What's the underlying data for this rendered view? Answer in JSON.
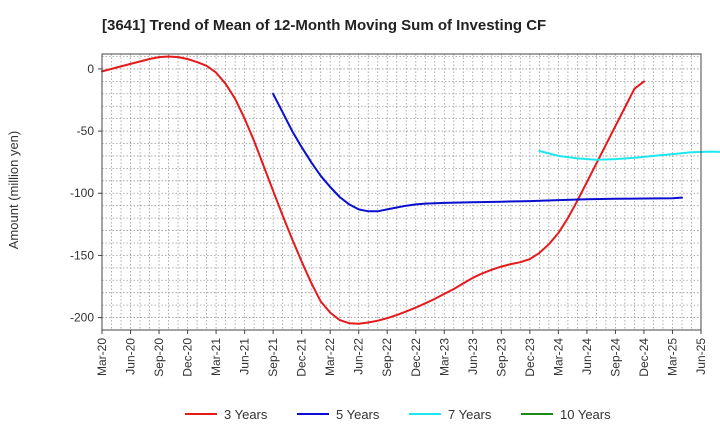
{
  "chart_data": {
    "type": "line",
    "title": "[3641]  Trend of Mean of 12-Month Moving Sum of Investing CF",
    "xlabel": "",
    "ylabel": "Amount (million yen)",
    "ylim": [
      -210,
      12
    ],
    "yticks": [
      0,
      -50,
      -100,
      -150,
      -200
    ],
    "xticks": [
      "Mar-20",
      "Jun-20",
      "Sep-20",
      "Dec-20",
      "Mar-21",
      "Jun-21",
      "Sep-21",
      "Dec-21",
      "Mar-22",
      "Jun-22",
      "Sep-22",
      "Dec-22",
      "Mar-23",
      "Jun-23",
      "Sep-23",
      "Dec-23",
      "Mar-24",
      "Jun-24",
      "Sep-24",
      "Dec-24",
      "Mar-25",
      "Jun-25"
    ],
    "grid": true,
    "legend_position": "bottom",
    "series": [
      {
        "name": "3 Years",
        "color": "#e41a1c",
        "points": [
          [
            "Mar-20",
            -2
          ],
          [
            "Apr-20",
            0
          ],
          [
            "May-20",
            2
          ],
          [
            "Jun-20",
            4
          ],
          [
            "Jul-20",
            6
          ],
          [
            "Aug-20",
            8
          ],
          [
            "Sep-20",
            9.5
          ],
          [
            "Oct-20",
            10
          ],
          [
            "Nov-20",
            9.5
          ],
          [
            "Dec-20",
            8
          ],
          [
            "Jan-21",
            5.5
          ],
          [
            "Feb-21",
            2.5
          ],
          [
            "Mar-21",
            -3
          ],
          [
            "Apr-21",
            -12
          ],
          [
            "May-21",
            -24
          ],
          [
            "Jun-21",
            -40
          ],
          [
            "Jul-21",
            -58
          ],
          [
            "Aug-21",
            -78
          ],
          [
            "Sep-21",
            -98
          ],
          [
            "Oct-21",
            -118
          ],
          [
            "Nov-21",
            -137
          ],
          [
            "Dec-21",
            -155
          ],
          [
            "Jan-22",
            -172
          ],
          [
            "Feb-22",
            -187
          ],
          [
            "Mar-22",
            -196
          ],
          [
            "Apr-22",
            -202
          ],
          [
            "May-22",
            -204.5
          ],
          [
            "Jun-22",
            -205
          ],
          [
            "Jul-22",
            -204
          ],
          [
            "Aug-22",
            -202.5
          ],
          [
            "Sep-22",
            -200.5
          ],
          [
            "Oct-22",
            -198
          ],
          [
            "Nov-22",
            -195
          ],
          [
            "Dec-22",
            -192
          ],
          [
            "Jan-23",
            -188.5
          ],
          [
            "Feb-23",
            -185
          ],
          [
            "Mar-23",
            -181
          ],
          [
            "Apr-23",
            -177
          ],
          [
            "May-23",
            -172.5
          ],
          [
            "Jun-23",
            -168
          ],
          [
            "Jul-23",
            -164.5
          ],
          [
            "Aug-23",
            -161.5
          ],
          [
            "Sep-23",
            -159
          ],
          [
            "Oct-23",
            -157
          ],
          [
            "Nov-23",
            -155.5
          ],
          [
            "Dec-23",
            -153
          ],
          [
            "Jan-24",
            -148
          ],
          [
            "Feb-24",
            -141
          ],
          [
            "Mar-24",
            -132
          ],
          [
            "Apr-24",
            -120
          ],
          [
            "May-24",
            -106
          ],
          [
            "Jun-24",
            -91
          ],
          [
            "Jul-24",
            -76
          ],
          [
            "Aug-24",
            -61
          ],
          [
            "Sep-24",
            -46
          ],
          [
            "Oct-24",
            -31
          ],
          [
            "Nov-24",
            -16
          ],
          [
            "Dec-24",
            -10
          ]
        ]
      },
      {
        "name": "5 Years",
        "color": "#0a0fcf",
        "points": [
          [
            "Sep-21",
            -20
          ],
          [
            "Oct-21",
            -35
          ],
          [
            "Nov-21",
            -50
          ],
          [
            "Dec-21",
            -63
          ],
          [
            "Jan-22",
            -75
          ],
          [
            "Feb-22",
            -86
          ],
          [
            "Mar-22",
            -95
          ],
          [
            "Apr-22",
            -103
          ],
          [
            "May-22",
            -109
          ],
          [
            "Jun-22",
            -113
          ],
          [
            "Jul-22",
            -114.5
          ],
          [
            "Aug-22",
            -114.5
          ],
          [
            "Sep-22",
            -113
          ],
          [
            "Oct-22",
            -111.5
          ],
          [
            "Nov-22",
            -110
          ],
          [
            "Dec-22",
            -109
          ],
          [
            "Jan-23",
            -108.3
          ],
          [
            "Feb-23",
            -108
          ],
          [
            "Mar-23",
            -107.8
          ],
          [
            "Jun-23",
            -107.3
          ],
          [
            "Sep-23",
            -106.8
          ],
          [
            "Dec-23",
            -106.3
          ],
          [
            "Mar-24",
            -105.5
          ],
          [
            "Jun-24",
            -104.8
          ],
          [
            "Sep-24",
            -104.5
          ],
          [
            "Dec-24",
            -104.2
          ],
          [
            "Mar-25",
            -104
          ],
          [
            "Apr-25",
            -103.5
          ]
        ]
      },
      {
        "name": "7 Years",
        "color": "#1ee8ee",
        "points": [
          [
            "Jan-24",
            -66
          ],
          [
            "Mar-24",
            -70
          ],
          [
            "May-24",
            -72
          ],
          [
            "Jul-24",
            -73
          ],
          [
            "Sep-24",
            -72.5
          ],
          [
            "Nov-24",
            -71.5
          ],
          [
            "Jan-25",
            -70
          ],
          [
            "Mar-25",
            -68.5
          ],
          [
            "May-25",
            -67
          ],
          [
            "Jul-25",
            -66.5
          ],
          [
            "Sep-25",
            -67
          ],
          [
            "Oct-25",
            -68.5
          ]
        ]
      },
      {
        "name": "10 Years",
        "color": "#1a8a1a",
        "points": []
      }
    ]
  }
}
